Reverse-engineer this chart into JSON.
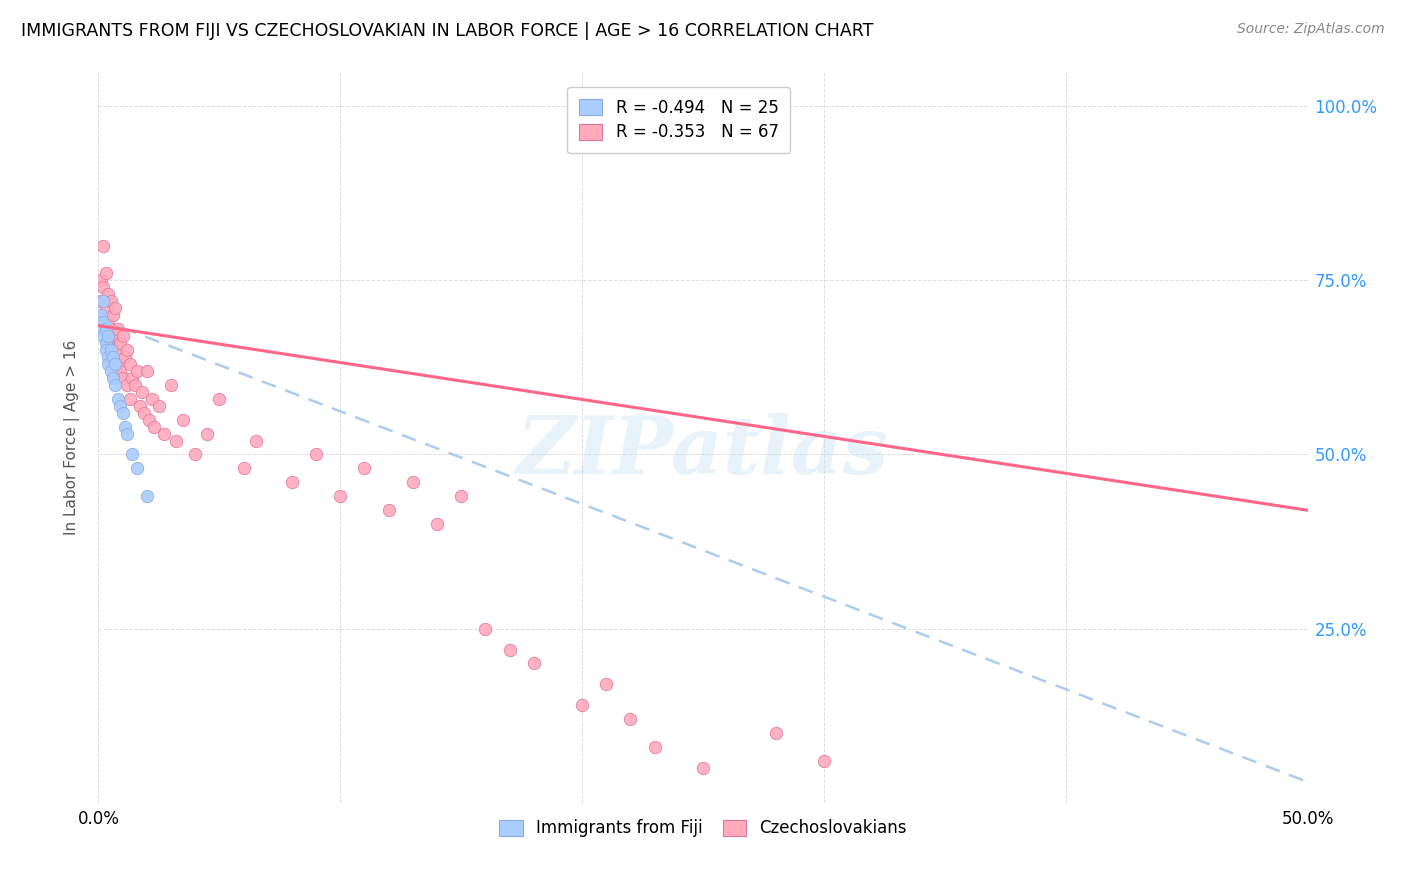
{
  "title": "IMMIGRANTS FROM FIJI VS CZECHOSLOVAKIAN IN LABOR FORCE | AGE > 16 CORRELATION CHART",
  "source": "Source: ZipAtlas.com",
  "ylabel": "In Labor Force | Age > 16",
  "ylabel_right_ticks": [
    "100.0%",
    "75.0%",
    "50.0%",
    "25.0%"
  ],
  "ylabel_right_vals": [
    1.0,
    0.75,
    0.5,
    0.25
  ],
  "xlim": [
    0.0,
    0.5
  ],
  "ylim": [
    0.0,
    1.05
  ],
  "fiji_color": "#aaccff",
  "fiji_edge_color": "#88aadd",
  "czech_color": "#ffaabb",
  "czech_edge_color": "#dd7799",
  "fiji_R": -0.494,
  "fiji_N": 25,
  "czech_R": -0.353,
  "czech_N": 67,
  "fiji_line_color": "#aaccee",
  "czech_line_color": "#ff6688",
  "fiji_scatter_x": [
    0.001,
    0.001,
    0.002,
    0.002,
    0.002,
    0.003,
    0.003,
    0.003,
    0.004,
    0.004,
    0.004,
    0.005,
    0.005,
    0.006,
    0.006,
    0.007,
    0.007,
    0.008,
    0.009,
    0.01,
    0.011,
    0.012,
    0.014,
    0.016,
    0.02
  ],
  "fiji_scatter_y": [
    0.7,
    0.68,
    0.72,
    0.69,
    0.67,
    0.66,
    0.68,
    0.65,
    0.64,
    0.67,
    0.63,
    0.65,
    0.62,
    0.61,
    0.64,
    0.6,
    0.63,
    0.58,
    0.57,
    0.56,
    0.54,
    0.53,
    0.5,
    0.48,
    0.44
  ],
  "czech_scatter_x": [
    0.001,
    0.001,
    0.002,
    0.002,
    0.002,
    0.003,
    0.003,
    0.003,
    0.004,
    0.004,
    0.004,
    0.005,
    0.005,
    0.005,
    0.006,
    0.006,
    0.007,
    0.007,
    0.008,
    0.008,
    0.009,
    0.009,
    0.01,
    0.01,
    0.011,
    0.012,
    0.012,
    0.013,
    0.013,
    0.014,
    0.015,
    0.016,
    0.017,
    0.018,
    0.019,
    0.02,
    0.021,
    0.022,
    0.023,
    0.025,
    0.027,
    0.03,
    0.032,
    0.035,
    0.04,
    0.045,
    0.05,
    0.06,
    0.065,
    0.08,
    0.09,
    0.1,
    0.11,
    0.12,
    0.13,
    0.14,
    0.15,
    0.16,
    0.17,
    0.18,
    0.2,
    0.21,
    0.22,
    0.23,
    0.25,
    0.28,
    0.3
  ],
  "czech_scatter_y": [
    0.75,
    0.72,
    0.8,
    0.74,
    0.7,
    0.76,
    0.71,
    0.68,
    0.73,
    0.69,
    0.66,
    0.72,
    0.68,
    0.64,
    0.7,
    0.67,
    0.71,
    0.65,
    0.68,
    0.63,
    0.66,
    0.62,
    0.67,
    0.61,
    0.64,
    0.65,
    0.6,
    0.63,
    0.58,
    0.61,
    0.6,
    0.62,
    0.57,
    0.59,
    0.56,
    0.62,
    0.55,
    0.58,
    0.54,
    0.57,
    0.53,
    0.6,
    0.52,
    0.55,
    0.5,
    0.53,
    0.58,
    0.48,
    0.52,
    0.46,
    0.5,
    0.44,
    0.48,
    0.42,
    0.46,
    0.4,
    0.44,
    0.25,
    0.22,
    0.2,
    0.14,
    0.17,
    0.12,
    0.08,
    0.05,
    0.1,
    0.06
  ],
  "fiji_trend_x": [
    0.0,
    0.5
  ],
  "fiji_trend_y": [
    0.695,
    0.03
  ],
  "czech_trend_x": [
    0.0,
    0.5
  ],
  "czech_trend_y": [
    0.685,
    0.42
  ],
  "watermark": "ZIPatlas",
  "marker_size": 80,
  "grid_color": "#dddddd",
  "grid_linestyle": "--"
}
